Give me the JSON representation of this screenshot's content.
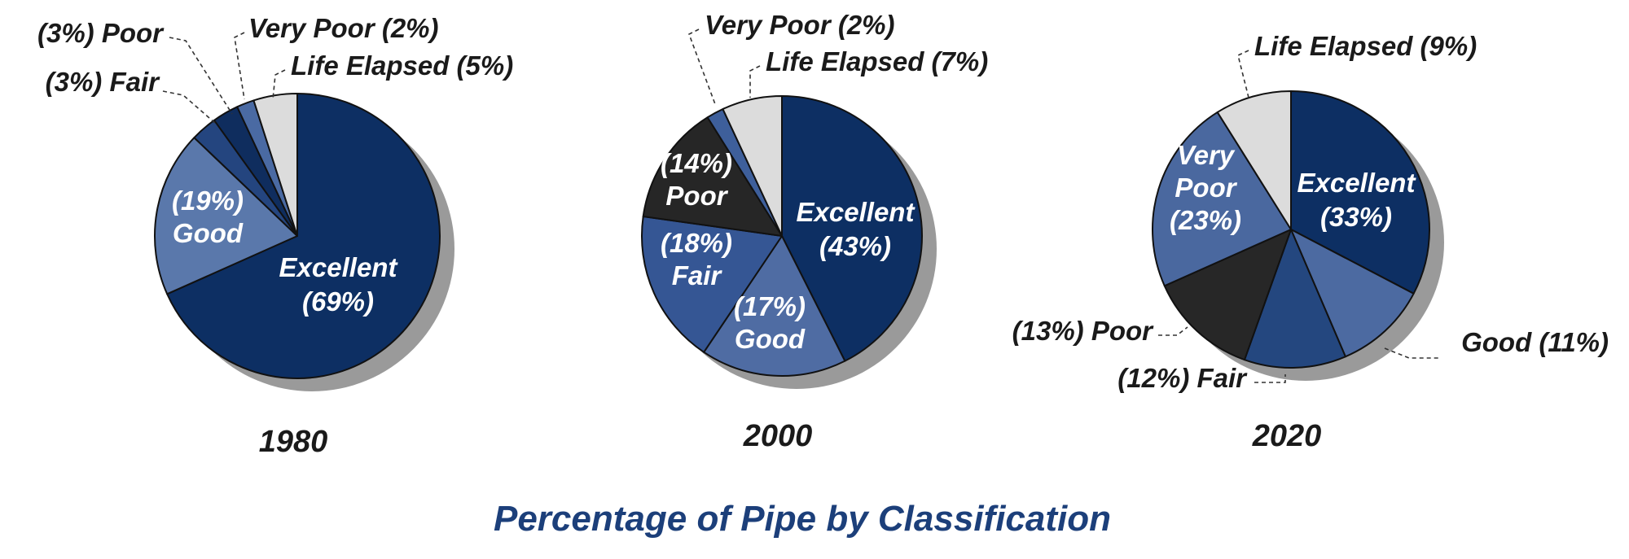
{
  "title": "Percentage of Pipe by Classification",
  "colors": {
    "Excellent": "#0d2f63",
    "Good": "#4d6a9e",
    "Fair": "#28498a",
    "Poor": "#2a2a2a",
    "Very Poor": "#436398",
    "Life Elapsed": "#dcdcdc",
    "title": "#1c3f7a"
  },
  "chart_data": [
    {
      "type": "pie",
      "year": "1980",
      "slices": [
        {
          "name": "Excellent",
          "value": 69,
          "color": "#0d2f63",
          "label_lines": [
            "Excellent",
            "(69%)"
          ],
          "label_inside": true
        },
        {
          "name": "Good",
          "value": 19,
          "color": "#5a78ab",
          "label_lines": [
            "(19%)",
            "Good"
          ],
          "label_inside": true
        },
        {
          "name": "Fair",
          "value": 3,
          "color": "#24457f",
          "label_lines": [
            "(3%) Fair"
          ],
          "label_inside": false
        },
        {
          "name": "Poor",
          "value": 3,
          "color": "#0f2d5e",
          "label_lines": [
            "(3%) Poor"
          ],
          "label_inside": false
        },
        {
          "name": "Very Poor",
          "value": 2,
          "color": "#4a6aa3",
          "label_lines": [
            "Very Poor (2%)"
          ],
          "label_inside": false
        },
        {
          "name": "Life Elapsed",
          "value": 5,
          "color": "#dcdcdc",
          "label_lines": [
            "Life Elapsed (5%)"
          ],
          "label_inside": false
        }
      ]
    },
    {
      "type": "pie",
      "year": "2000",
      "slices": [
        {
          "name": "Excellent",
          "value": 43,
          "color": "#0d2f63",
          "label_lines": [
            "Excellent",
            "(43%)"
          ],
          "label_inside": true
        },
        {
          "name": "Good",
          "value": 17,
          "color": "#4f6ca3",
          "label_lines": [
            "(17%)",
            "Good"
          ],
          "label_inside": true
        },
        {
          "name": "Fair",
          "value": 18,
          "color": "#355694",
          "label_lines": [
            "(18%)",
            "Fair"
          ],
          "label_inside": true
        },
        {
          "name": "Poor",
          "value": 14,
          "color": "#262626",
          "label_lines": [
            "(14%)",
            "Poor"
          ],
          "label_inside": true
        },
        {
          "name": "Very Poor",
          "value": 2,
          "color": "#3e5f9b",
          "label_lines": [
            "Very Poor (2%)"
          ],
          "label_inside": false
        },
        {
          "name": "Life Elapsed",
          "value": 7,
          "color": "#dcdcdc",
          "label_lines": [
            "Life Elapsed (7%)"
          ],
          "label_inside": false
        }
      ]
    },
    {
      "type": "pie",
      "year": "2020",
      "slices": [
        {
          "name": "Excellent",
          "value": 33,
          "color": "#0d2f63",
          "label_lines": [
            "Excellent",
            "(33%)"
          ],
          "label_inside": true
        },
        {
          "name": "Good",
          "value": 11,
          "color": "#4c6aa1",
          "label_lines": [
            "Good (11%)"
          ],
          "label_inside": false
        },
        {
          "name": "Fair",
          "value": 12,
          "color": "#24477f",
          "label_lines": [
            "(12%) Fair"
          ],
          "label_inside": false
        },
        {
          "name": "Poor",
          "value": 13,
          "color": "#272727",
          "label_lines": [
            "(13%) Poor"
          ],
          "label_inside": false
        },
        {
          "name": "Very Poor",
          "value": 23,
          "color": "#4a689f",
          "label_lines": [
            "Very",
            "Poor",
            "(23%)"
          ],
          "label_inside": true
        },
        {
          "name": "Life Elapsed",
          "value": 9,
          "color": "#dcdcdc",
          "label_lines": [
            "Life Elapsed (9%)"
          ],
          "label_inside": false
        }
      ]
    }
  ]
}
